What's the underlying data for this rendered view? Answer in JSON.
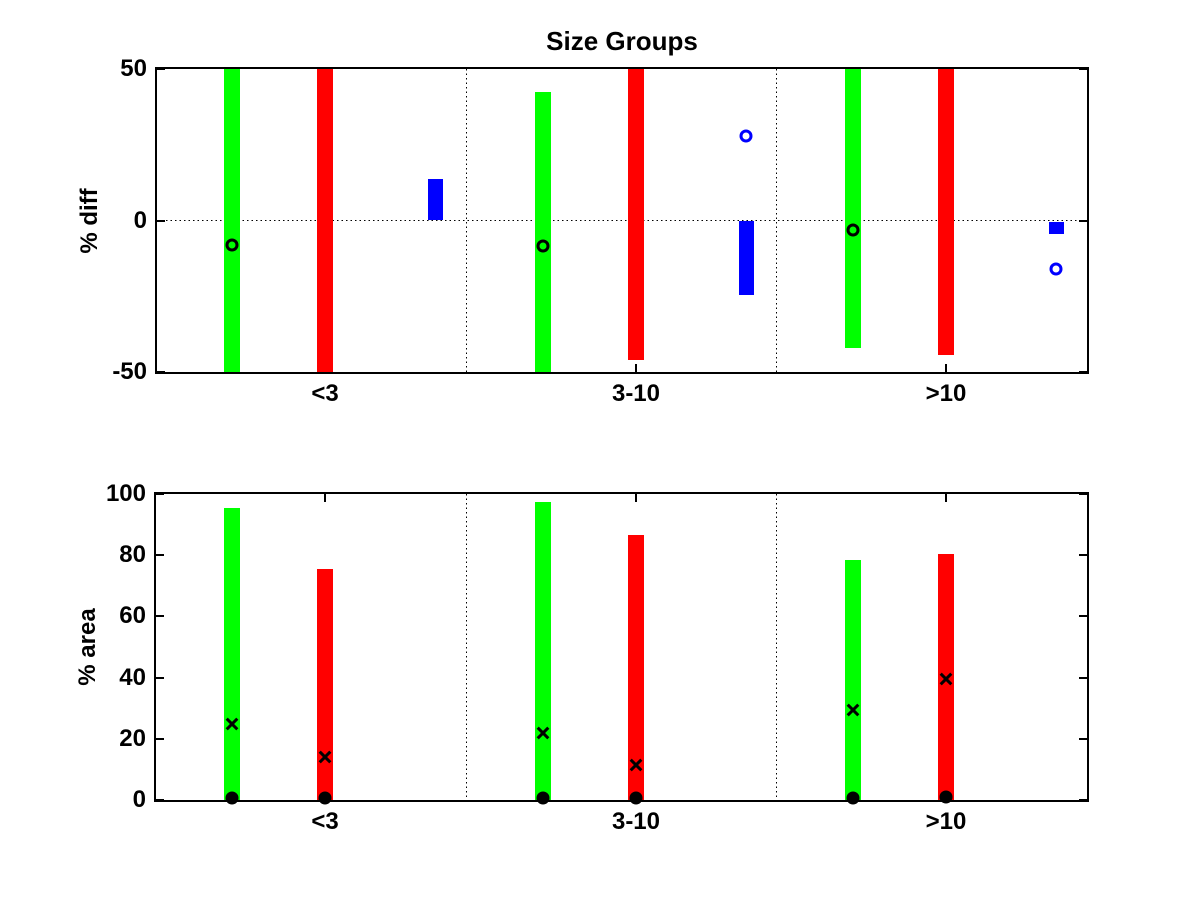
{
  "figure_title": "Size Groups",
  "colors": {
    "green": "#00ff00",
    "red": "#ff0000",
    "blue": "#0000ff",
    "black": "#000000",
    "background": "#ffffff"
  },
  "chart_data": [
    {
      "type": "bar",
      "title": "Size Groups",
      "ylabel": "% diff",
      "ylim": [
        -50,
        50
      ],
      "yticks": [
        -50,
        0,
        50
      ],
      "categories": [
        "<3",
        "3-10",
        ">10"
      ],
      "grid": {
        "h_dotted_at": [
          0
        ],
        "v_dotted_between_groups": true,
        "box": true
      },
      "series": [
        {
          "name": "green-bar",
          "kind": "floating-bar",
          "color": "#00ff00",
          "column": "green",
          "ranges": [
            [
              -50,
              50
            ],
            [
              -50,
              42.5
            ],
            [
              -42,
              50
            ]
          ],
          "note": "bars clipped at axis limits"
        },
        {
          "name": "red-bar",
          "kind": "floating-bar",
          "color": "#ff0000",
          "column": "red",
          "ranges": [
            [
              -50,
              50
            ],
            [
              -46,
              50
            ],
            [
              -44.5,
              50
            ]
          ]
        },
        {
          "name": "blue-bar",
          "kind": "floating-bar",
          "color": "#0000ff",
          "column": "blue",
          "ranges": [
            [
              0,
              13.7
            ],
            [
              -24.5,
              -0.3
            ],
            [
              -4.5,
              -0.5
            ]
          ]
        },
        {
          "name": "black-open-circle",
          "kind": "open-circle",
          "color": "#000000",
          "column": "green",
          "values": [
            -8,
            -8.5,
            -3
          ]
        },
        {
          "name": "blue-open-circle",
          "kind": "open-circle",
          "color": "#0000ff",
          "column": "blue",
          "values": [
            null,
            28,
            -16
          ]
        }
      ]
    },
    {
      "type": "bar",
      "title": "",
      "ylabel": "% area",
      "ylim": [
        0,
        100
      ],
      "yticks": [
        0,
        20,
        40,
        60,
        80,
        100
      ],
      "categories": [
        "<3",
        "3-10",
        ">10"
      ],
      "grid": {
        "h_dotted_at": [],
        "v_dotted_between_groups": true,
        "box": true
      },
      "series": [
        {
          "name": "green-bar",
          "kind": "bar",
          "color": "#00ff00",
          "column": "green",
          "values": [
            95.5,
            97.5,
            78.5
          ]
        },
        {
          "name": "red-bar",
          "kind": "bar",
          "color": "#ff0000",
          "column": "red",
          "values": [
            75.5,
            86.5,
            80.5
          ]
        },
        {
          "name": "black-x-on-green",
          "kind": "x-marker",
          "color": "#000000",
          "column": "green",
          "values": [
            25,
            22,
            29.5
          ]
        },
        {
          "name": "black-x-on-red",
          "kind": "x-marker",
          "color": "#000000",
          "column": "red",
          "values": [
            14,
            11.5,
            39.5
          ]
        },
        {
          "name": "black-dot-on-green",
          "kind": "filled-circle",
          "color": "#000000",
          "column": "green",
          "values": [
            0.5,
            0.5,
            0.5
          ]
        },
        {
          "name": "black-dot-on-red",
          "kind": "filled-circle",
          "color": "#000000",
          "column": "red",
          "values": [
            0.5,
            0.5,
            1
          ]
        }
      ]
    }
  ]
}
